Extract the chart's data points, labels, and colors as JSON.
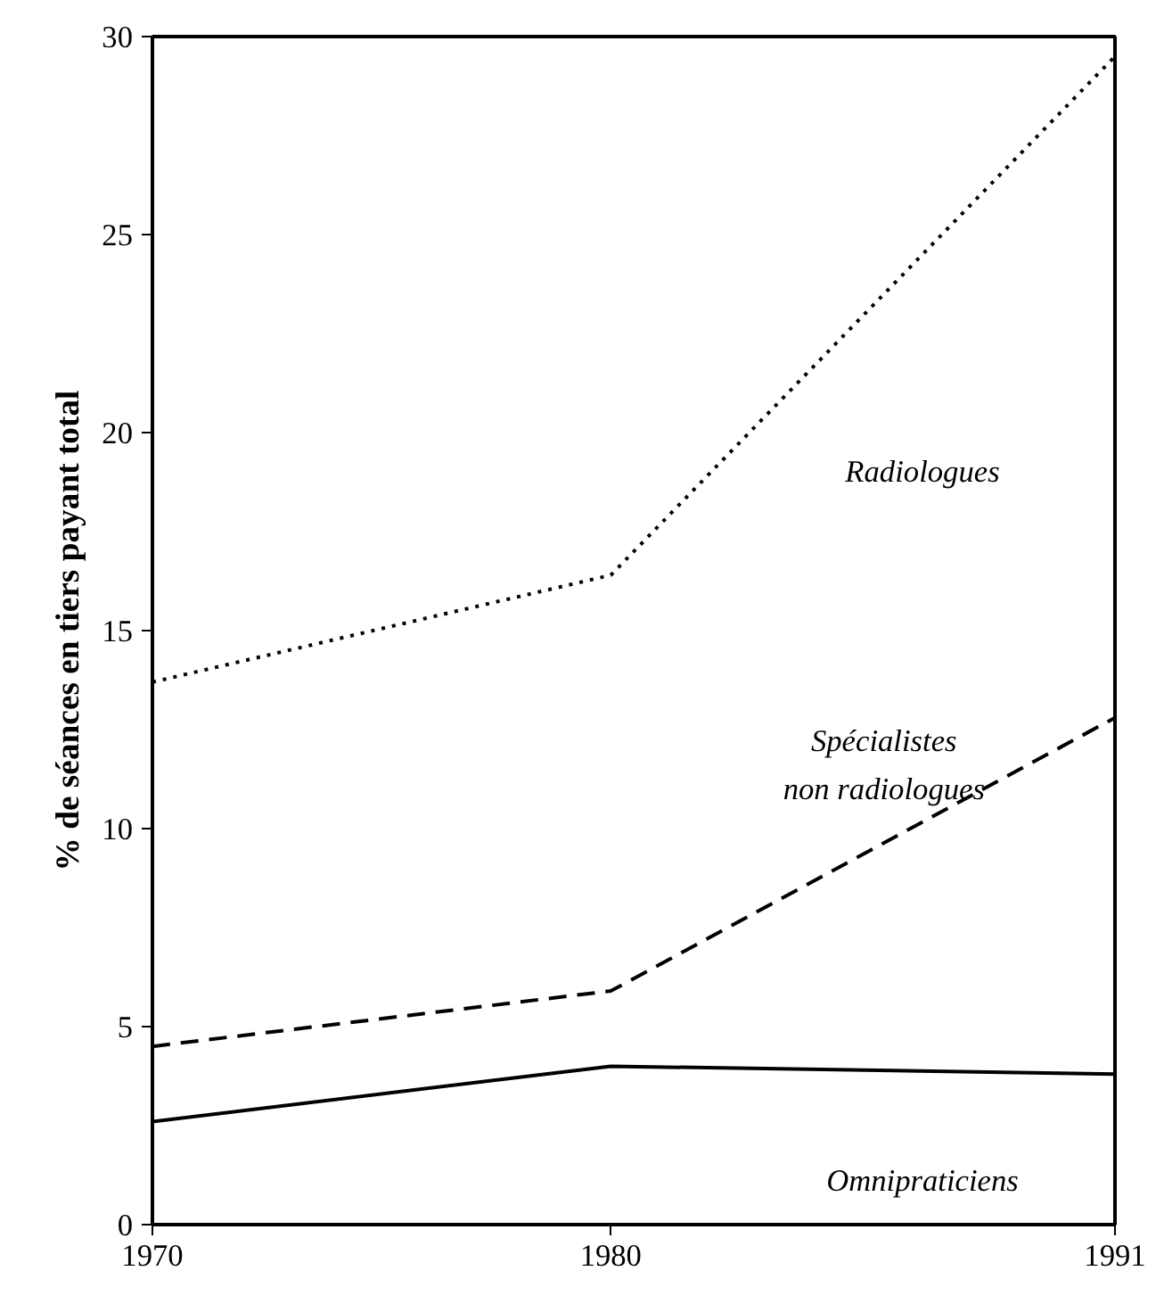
{
  "chart_data": {
    "type": "line",
    "ylabel": "% de séances en tiers payant total",
    "x": [
      1970,
      1980,
      1991
    ],
    "xlim": [
      1970,
      1991
    ],
    "xticks": [
      1970,
      1980,
      1991
    ],
    "ylim": [
      0,
      30
    ],
    "yticks": [
      0,
      5,
      10,
      15,
      20,
      25,
      30
    ],
    "grid": false,
    "series": [
      {
        "name": "Radiologues",
        "color": "#000000",
        "line_style": "dotted",
        "values": [
          13.7,
          16.4,
          29.5
        ]
      },
      {
        "name": "Spécialistes\nnon radiologues",
        "color": "#000000",
        "line_style": "dashed",
        "values": [
          4.5,
          5.9,
          12.8
        ]
      },
      {
        "name": "Omnipraticiens",
        "color": "#000000",
        "line_style": "solid",
        "values": [
          2.6,
          4.0,
          3.8
        ]
      }
    ]
  }
}
